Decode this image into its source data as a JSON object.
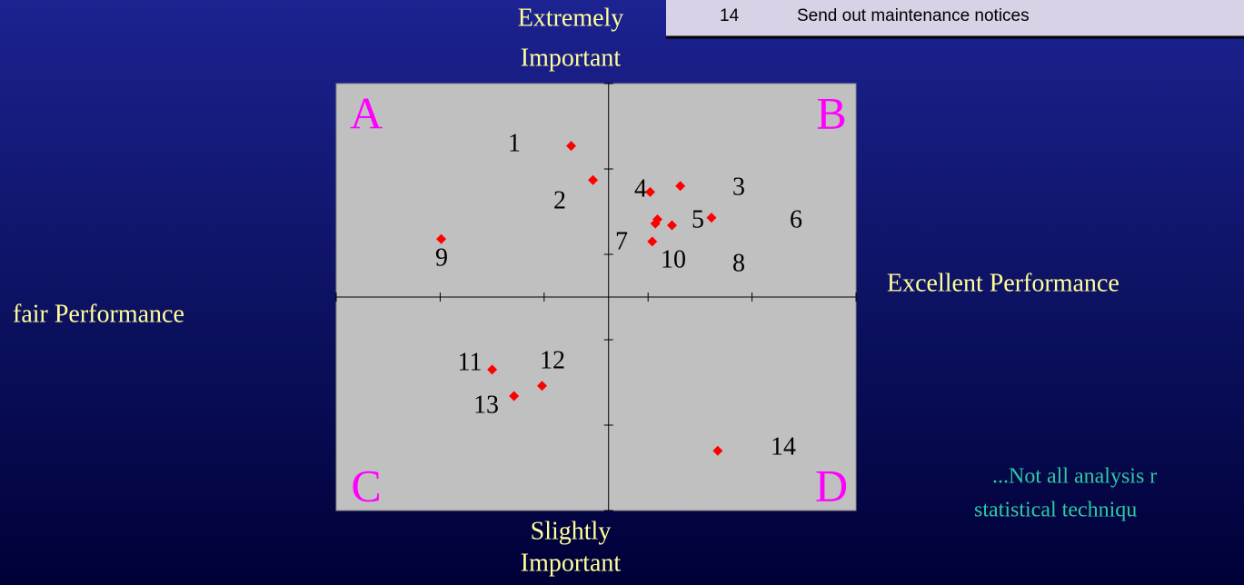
{
  "header": {
    "number": "14",
    "text": "Send out maintenance notices"
  },
  "chart_data": {
    "type": "scatter",
    "x": [
      2.26,
      2.47,
      3.02,
      3.31,
      3.09,
      3.07,
      3.23,
      3.61,
      3.04,
      1.01,
      1.5,
      1.98,
      1.71,
      3.67
    ],
    "values": [
      4.27,
      3.87,
      3.73,
      3.8,
      3.41,
      3.36,
      3.34,
      3.43,
      3.15,
      3.18,
      1.65,
      1.46,
      1.34,
      0.7
    ],
    "color": "#ff0000",
    "xlim": [
      0,
      5
    ],
    "ylim": [
      0,
      5
    ],
    "xticks": [
      0,
      1,
      2,
      3,
      4,
      5
    ],
    "yticks": [
      0,
      1,
      2,
      3,
      4,
      5
    ],
    "xaxis_at_y": 2.5,
    "yaxis_at_x": 2.62,
    "point_labels": [
      "1",
      "2",
      "4",
      "3",
      "5",
      "6",
      "7",
      "10",
      "8",
      "9",
      "11",
      "12",
      "13",
      "14"
    ],
    "quadrants": [
      "A",
      "B",
      "C",
      "D"
    ],
    "top_label": [
      "Extremely",
      "Important"
    ],
    "bottom_label": [
      "Slightly",
      "Important"
    ],
    "left_label": "fair Performance",
    "right_label": "Excellent Performance"
  },
  "note": [
    "...Not all analysis r",
    "statistical techniqu"
  ]
}
